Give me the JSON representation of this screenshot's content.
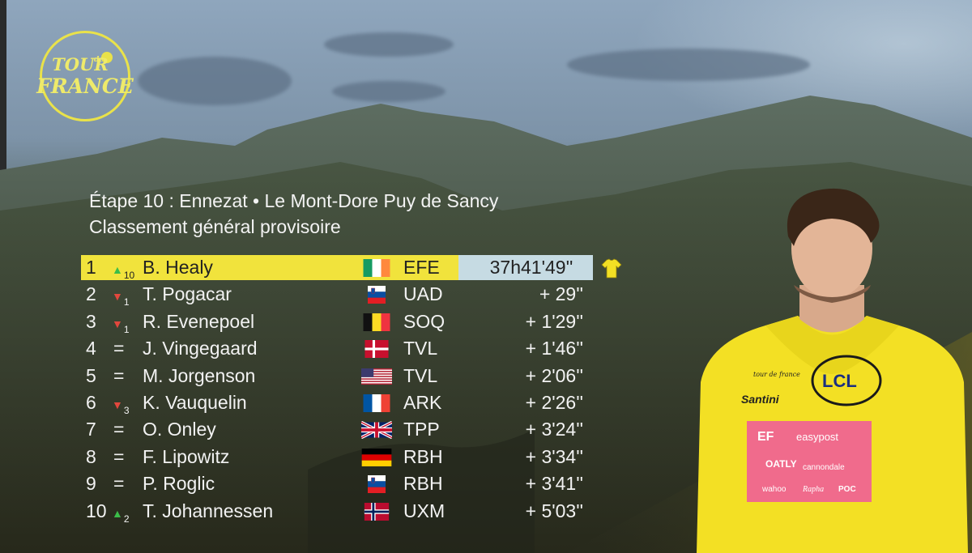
{
  "logo": {
    "line1": "TOUR",
    "line2": "de",
    "line3": "FRANCE"
  },
  "stage_title": "Étape 10 : Ennezat • Le Mont-Dore Puy de Sancy",
  "classification_title": "Classement général provisoire",
  "rows": [
    {
      "pos": "1",
      "move": "up",
      "move_num": "10",
      "name": "B. Healy",
      "flag": "ireland",
      "team": "EFE",
      "gap": "37h41'49''",
      "leader": true
    },
    {
      "pos": "2",
      "move": "down",
      "move_num": "1",
      "name": "T. Pogacar",
      "flag": "slovenia",
      "team": "UAD",
      "gap": "+ 29''"
    },
    {
      "pos": "3",
      "move": "down",
      "move_num": "1",
      "name": "R. Evenepoel",
      "flag": "belgium",
      "team": "SOQ",
      "gap": "+ 1'29''"
    },
    {
      "pos": "4",
      "move": "same",
      "move_num": "",
      "name": "J. Vingegaard",
      "flag": "denmark",
      "team": "TVL",
      "gap": "+ 1'46''"
    },
    {
      "pos": "5",
      "move": "same",
      "move_num": "",
      "name": "M. Jorgenson",
      "flag": "usa",
      "team": "TVL",
      "gap": "+ 2'06''"
    },
    {
      "pos": "6",
      "move": "down",
      "move_num": "3",
      "name": "K. Vauquelin",
      "flag": "france",
      "team": "ARK",
      "gap": "+ 2'26''"
    },
    {
      "pos": "7",
      "move": "same",
      "move_num": "",
      "name": "O. Onley",
      "flag": "uk",
      "team": "TPP",
      "gap": "+ 3'24''"
    },
    {
      "pos": "8",
      "move": "same",
      "move_num": "",
      "name": "F. Lipowitz",
      "flag": "germany",
      "team": "RBH",
      "gap": "+ 3'34''"
    },
    {
      "pos": "9",
      "move": "same",
      "move_num": "",
      "name": "P. Roglic",
      "flag": "slovenia",
      "team": "RBH",
      "gap": "+ 3'41''"
    },
    {
      "pos": "10",
      "move": "up",
      "move_num": "2",
      "name": "T. Johannessen",
      "flag": "norway",
      "team": "UXM",
      "gap": "+ 5'03''"
    }
  ],
  "symbols": {
    "up": "▲",
    "down": "▼",
    "same": "="
  },
  "jersey_icon": "yellow-jersey-icon",
  "rider_jersey": {
    "sponsor_chest": "LCL",
    "brand": "Santini",
    "team_sponsor1": "EF",
    "team_sponsor2": "easypost",
    "team_sponsor3": "cannondale",
    "team_sponsor4": "wahoo",
    "team_sponsor5": "Rapha",
    "team_sponsor6": "POC",
    "team_sponsor7": "OATLY",
    "logo_small": "tour de france"
  },
  "colors": {
    "leader_yellow": "#f1e33c",
    "leader_time_bg": "#c6dbe3",
    "up": "#3bbd49",
    "down": "#e2473d",
    "jersey": "#f3e024"
  }
}
